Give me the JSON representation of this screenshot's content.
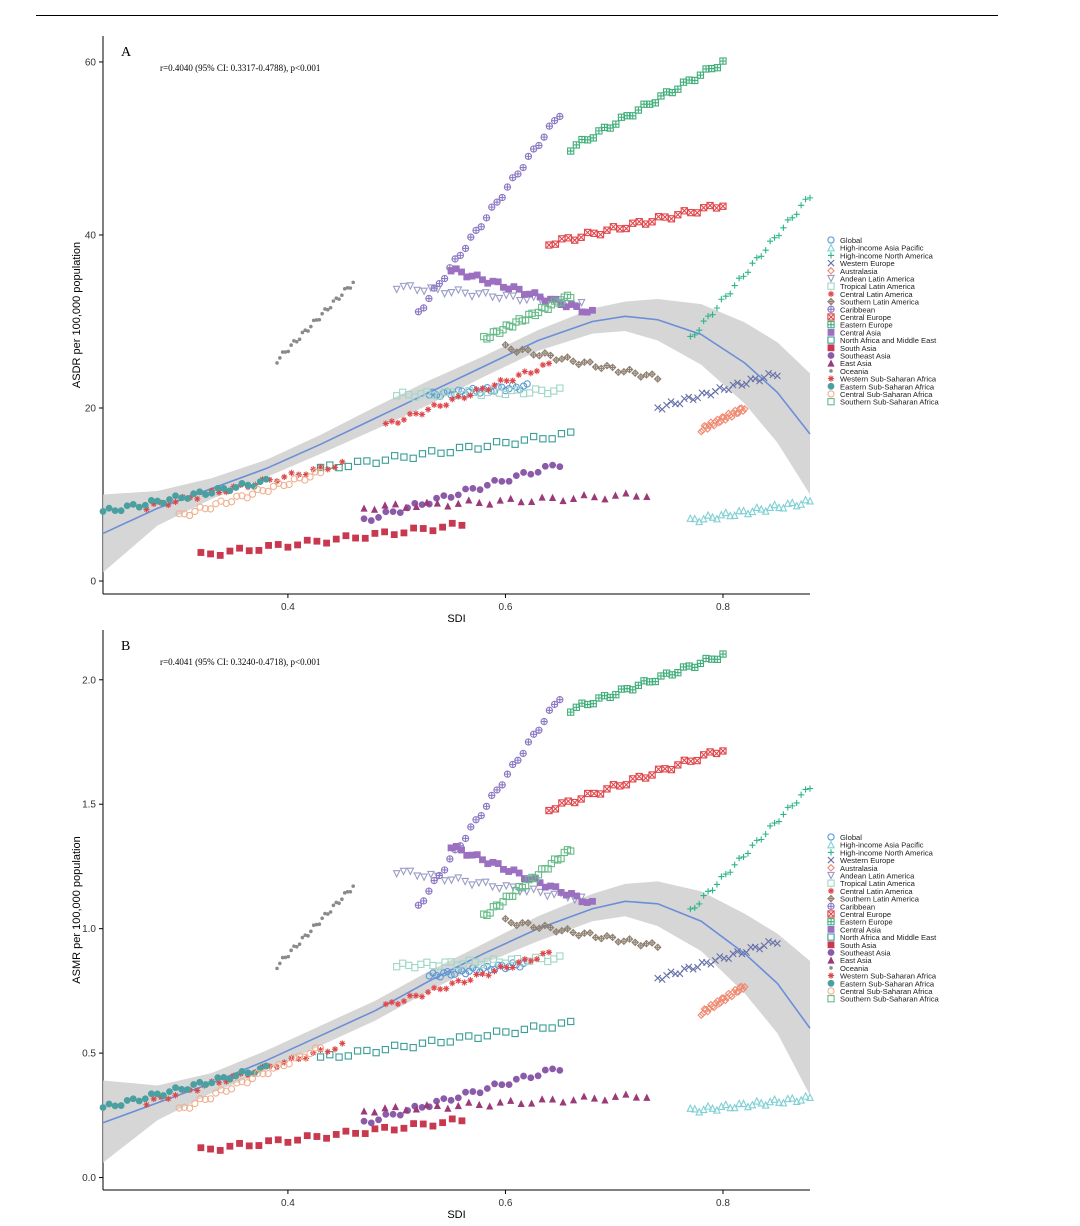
{
  "chart_data": [
    {
      "type": "scatter",
      "panel_label": "A",
      "annotation": "r=0.4040 (95% CI: 0.3317-0.4788), p<0.001",
      "xlabel": "SDI",
      "ylabel": "ASDR per 100,000 population",
      "xlim": [
        0.23,
        0.88
      ],
      "ylim": [
        -1.5,
        63
      ],
      "xticks": [
        0.4,
        0.6,
        0.8
      ],
      "yticks": [
        0,
        20,
        40,
        60
      ],
      "legend_position": "right",
      "fit": {
        "x": [
          0.23,
          0.28,
          0.33,
          0.38,
          0.43,
          0.48,
          0.53,
          0.58,
          0.63,
          0.68,
          0.71,
          0.74,
          0.78,
          0.82,
          0.85,
          0.88
        ],
        "y": [
          5.5,
          8.4,
          10.7,
          13,
          15.8,
          18.8,
          21.8,
          24.8,
          27.8,
          30,
          30.6,
          30.2,
          28.5,
          25.2,
          21.8,
          17
        ],
        "lower": [
          1,
          6.4,
          9.5,
          12,
          14.7,
          17.5,
          20.4,
          23.6,
          26.6,
          28.6,
          28.9,
          27.8,
          25,
          20.5,
          16,
          10
        ],
        "upper": [
          10,
          10.4,
          11.9,
          14,
          16.9,
          20.1,
          23.2,
          26,
          29,
          31.5,
          32.3,
          32.6,
          32,
          29.9,
          27.6,
          24
        ]
      },
      "series": [
        {
          "name": "Global",
          "x0": 0.53,
          "x1": 0.62,
          "y0": 21.5,
          "y1": 22.5
        },
        {
          "name": "High-income Asia Pacific",
          "x0": 0.77,
          "x1": 0.88,
          "y0": 7,
          "y1": 9.2
        },
        {
          "name": "High-income North America",
          "x0": 0.77,
          "x1": 0.88,
          "y0": 28,
          "y1": 44.5
        },
        {
          "name": "Western Europe",
          "x0": 0.74,
          "x1": 0.85,
          "y0": 20,
          "y1": 24
        },
        {
          "name": "Australasia",
          "x0": 0.78,
          "x1": 0.82,
          "y0": 17.5,
          "y1": 20
        },
        {
          "name": "Andean Latin America",
          "x0": 0.5,
          "x1": 0.67,
          "y0": 34,
          "y1": 32
        },
        {
          "name": "Tropical Latin America",
          "x0": 0.5,
          "x1": 0.65,
          "y0": 21.5,
          "y1": 22
        },
        {
          "name": "Central Latin America",
          "x0": 0.49,
          "x1": 0.64,
          "y0": 18,
          "y1": 25
        },
        {
          "name": "Southern Latin America",
          "x0": 0.6,
          "x1": 0.74,
          "y0": 27,
          "y1": 23.5
        },
        {
          "name": "Caribbean",
          "x0": 0.52,
          "x1": 0.65,
          "y0": 31,
          "y1": 54
        },
        {
          "name": "Central Europe",
          "x0": 0.64,
          "x1": 0.8,
          "y0": 39,
          "y1": 43.5
        },
        {
          "name": "Eastern Europe",
          "x0": 0.66,
          "x1": 0.8,
          "y0": 50,
          "y1": 60
        },
        {
          "name": "Central Asia",
          "x0": 0.55,
          "x1": 0.68,
          "y0": 36,
          "y1": 31
        },
        {
          "name": "North Africa and Middle East",
          "x0": 0.43,
          "x1": 0.66,
          "y0": 13,
          "y1": 17
        },
        {
          "name": "South Asia",
          "x0": 0.32,
          "x1": 0.56,
          "y0": 3,
          "y1": 6.5
        },
        {
          "name": "Southeast Asia",
          "x0": 0.47,
          "x1": 0.65,
          "y0": 7,
          "y1": 13.5
        },
        {
          "name": "East Asia",
          "x0": 0.47,
          "x1": 0.73,
          "y0": 8.5,
          "y1": 10
        },
        {
          "name": "Oceania",
          "x0": 0.39,
          "x1": 0.46,
          "y0": 25.5,
          "y1": 34.5
        },
        {
          "name": "Western Sub-Saharan Africa",
          "x0": 0.27,
          "x1": 0.45,
          "y0": 8.5,
          "y1": 13.5
        },
        {
          "name": "Eastern Sub-Saharan Africa",
          "x0": 0.23,
          "x1": 0.38,
          "y0": 8,
          "y1": 11.5
        },
        {
          "name": "Central Sub-Saharan Africa",
          "x0": 0.3,
          "x1": 0.43,
          "y0": 7.5,
          "y1": 12.5
        },
        {
          "name": "Southern Sub-Saharan Africa",
          "x0": 0.58,
          "x1": 0.66,
          "y0": 28,
          "y1": 33
        }
      ]
    },
    {
      "type": "scatter",
      "panel_label": "B",
      "annotation": "r=0.4041 (95% CI: 0.3240-0.4718), p<0.001",
      "xlabel": "SDI",
      "ylabel": "ASMR per 100,000 population",
      "xlim": [
        0.23,
        0.88
      ],
      "ylim": [
        -0.05,
        2.2
      ],
      "xticks": [
        0.4,
        0.6,
        0.8
      ],
      "yticks": [
        0.0,
        0.5,
        1.0,
        1.5,
        2.0
      ],
      "legend_position": "right",
      "fit": {
        "x": [
          0.23,
          0.28,
          0.33,
          0.38,
          0.43,
          0.48,
          0.53,
          0.58,
          0.63,
          0.68,
          0.71,
          0.74,
          0.78,
          0.82,
          0.85,
          0.88
        ],
        "y": [
          0.22,
          0.3,
          0.38,
          0.47,
          0.57,
          0.67,
          0.79,
          0.9,
          1.0,
          1.08,
          1.11,
          1.1,
          1.03,
          0.9,
          0.78,
          0.6
        ],
        "lower": [
          0.06,
          0.23,
          0.34,
          0.43,
          0.53,
          0.63,
          0.75,
          0.86,
          0.95,
          1.03,
          1.05,
          1.01,
          0.91,
          0.74,
          0.58,
          0.33
        ],
        "upper": [
          0.39,
          0.37,
          0.42,
          0.51,
          0.61,
          0.71,
          0.83,
          0.94,
          1.05,
          1.14,
          1.18,
          1.19,
          1.15,
          1.06,
          0.98,
          0.87
        ]
      },
      "series": [
        {
          "name": "Global",
          "x0": 0.53,
          "x1": 0.62,
          "y0": 0.81,
          "y1": 0.86
        },
        {
          "name": "High-income Asia Pacific",
          "x0": 0.77,
          "x1": 0.88,
          "y0": 0.27,
          "y1": 0.32
        },
        {
          "name": "High-income North America",
          "x0": 0.77,
          "x1": 0.88,
          "y0": 1.07,
          "y1": 1.57
        },
        {
          "name": "Western Europe",
          "x0": 0.74,
          "x1": 0.85,
          "y0": 0.8,
          "y1": 0.95
        },
        {
          "name": "Australasia",
          "x0": 0.78,
          "x1": 0.82,
          "y0": 0.66,
          "y1": 0.77
        },
        {
          "name": "Andean Latin America",
          "x0": 0.5,
          "x1": 0.67,
          "y0": 1.23,
          "y1": 1.12
        },
        {
          "name": "Tropical Latin America",
          "x0": 0.5,
          "x1": 0.65,
          "y0": 0.85,
          "y1": 0.88
        },
        {
          "name": "Central Latin America",
          "x0": 0.49,
          "x1": 0.64,
          "y0": 0.69,
          "y1": 0.9
        },
        {
          "name": "Southern Latin America",
          "x0": 0.6,
          "x1": 0.74,
          "y0": 1.03,
          "y1": 0.93
        },
        {
          "name": "Caribbean",
          "x0": 0.52,
          "x1": 0.65,
          "y0": 1.09,
          "y1": 1.93
        },
        {
          "name": "Central Europe",
          "x0": 0.64,
          "x1": 0.8,
          "y0": 1.48,
          "y1": 1.72
        },
        {
          "name": "Eastern Europe",
          "x0": 0.66,
          "x1": 0.8,
          "y0": 1.88,
          "y1": 2.1
        },
        {
          "name": "Central Asia",
          "x0": 0.55,
          "x1": 0.68,
          "y0": 1.33,
          "y1": 1.1
        },
        {
          "name": "North Africa and Middle East",
          "x0": 0.43,
          "x1": 0.66,
          "y0": 0.48,
          "y1": 0.62
        },
        {
          "name": "South Asia",
          "x0": 0.32,
          "x1": 0.56,
          "y0": 0.11,
          "y1": 0.23
        },
        {
          "name": "Southeast Asia",
          "x0": 0.47,
          "x1": 0.65,
          "y0": 0.22,
          "y1": 0.44
        },
        {
          "name": "East Asia",
          "x0": 0.47,
          "x1": 0.73,
          "y0": 0.27,
          "y1": 0.33
        },
        {
          "name": "Oceania",
          "x0": 0.39,
          "x1": 0.46,
          "y0": 0.85,
          "y1": 1.17
        },
        {
          "name": "Western Sub-Saharan Africa",
          "x0": 0.27,
          "x1": 0.45,
          "y0": 0.3,
          "y1": 0.53
        },
        {
          "name": "Eastern Sub-Saharan Africa",
          "x0": 0.23,
          "x1": 0.38,
          "y0": 0.28,
          "y1": 0.44
        },
        {
          "name": "Central Sub-Saharan Africa",
          "x0": 0.3,
          "x1": 0.43,
          "y0": 0.27,
          "y1": 0.52
        },
        {
          "name": "Southern Sub-Saharan Africa",
          "x0": 0.58,
          "x1": 0.66,
          "y0": 1.05,
          "y1": 1.32
        }
      ]
    }
  ],
  "series_style": [
    {
      "color": "#5b9bd5",
      "shape": "circle"
    },
    {
      "color": "#7fd0d4",
      "shape": "triangle"
    },
    {
      "color": "#2bb58a",
      "shape": "plus"
    },
    {
      "color": "#6670a8",
      "shape": "x"
    },
    {
      "color": "#f08a72",
      "shape": "diamond"
    },
    {
      "color": "#9a9ec4",
      "shape": "tri-down"
    },
    {
      "color": "#9fd8c8",
      "shape": "square"
    },
    {
      "color": "#e0474c",
      "shape": "star"
    },
    {
      "color": "#8e8070",
      "shape": "diamond-plus"
    },
    {
      "color": "#8c78c4",
      "shape": "circle-plus"
    },
    {
      "color": "#e0474c",
      "shape": "square-x"
    },
    {
      "color": "#3fae7a",
      "shape": "square-plus"
    },
    {
      "color": "#9b70c0",
      "shape": "square-fill"
    },
    {
      "color": "#3b9e96",
      "shape": "square"
    },
    {
      "color": "#c8394f",
      "shape": "square-fill"
    },
    {
      "color": "#8b5aa8",
      "shape": "circle-fill"
    },
    {
      "color": "#9a3a78",
      "shape": "triangle-fill"
    },
    {
      "color": "#8a8a8a",
      "shape": "dot"
    },
    {
      "color": "#d84a4a",
      "shape": "star"
    },
    {
      "color": "#4aa0a0",
      "shape": "circle-fill"
    },
    {
      "color": "#f0b090",
      "shape": "circle"
    },
    {
      "color": "#66bb88",
      "shape": "square"
    }
  ],
  "fit_color": "#6a8ed8",
  "band_color": "#cfcfcf"
}
